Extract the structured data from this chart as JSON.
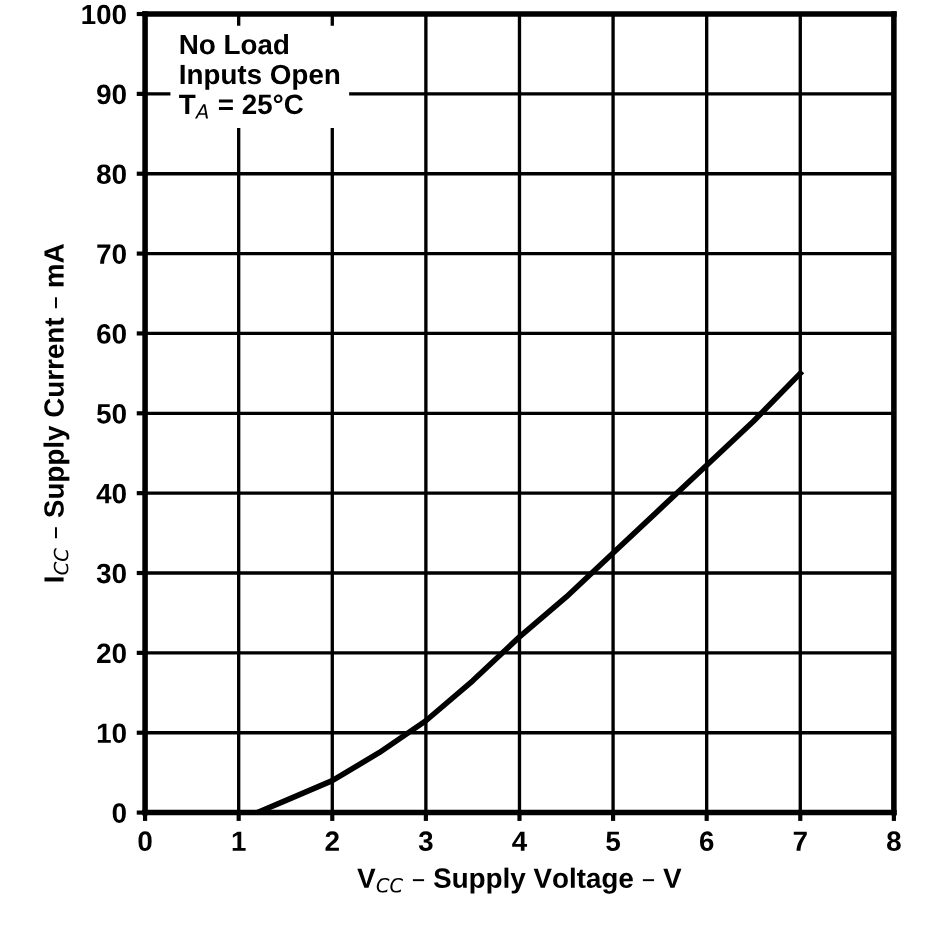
{
  "chart_data": {
    "type": "line",
    "xlabel": "V$_{CC}$ – Supply Voltage – V",
    "ylabel": "I$_{CC}$ – Supply Current – mA",
    "annotations": [
      "No Load\nInputs Open\nT$_{A}$ = 25°C"
    ],
    "x": [
      1.2,
      1.5,
      2,
      2.5,
      3,
      3.5,
      4,
      4.5,
      5,
      5.5,
      6,
      6.5,
      7
    ],
    "series": [
      {
        "color": "#000000",
        "values": [
          0,
          1.5,
          4,
          7.5,
          11.5,
          16.5,
          22,
          27,
          32.5,
          38,
          43.5,
          49,
          55
        ]
      }
    ],
    "xlim": [
      0,
      8
    ],
    "ylim": [
      0,
      100
    ],
    "xticks": [
      0,
      1,
      2,
      3,
      4,
      5,
      6,
      7,
      8
    ],
    "yticks": [
      0,
      10,
      20,
      30,
      40,
      50,
      60,
      70,
      80,
      90,
      100
    ],
    "grid": true,
    "marker": "none",
    "line_style": "solid"
  }
}
